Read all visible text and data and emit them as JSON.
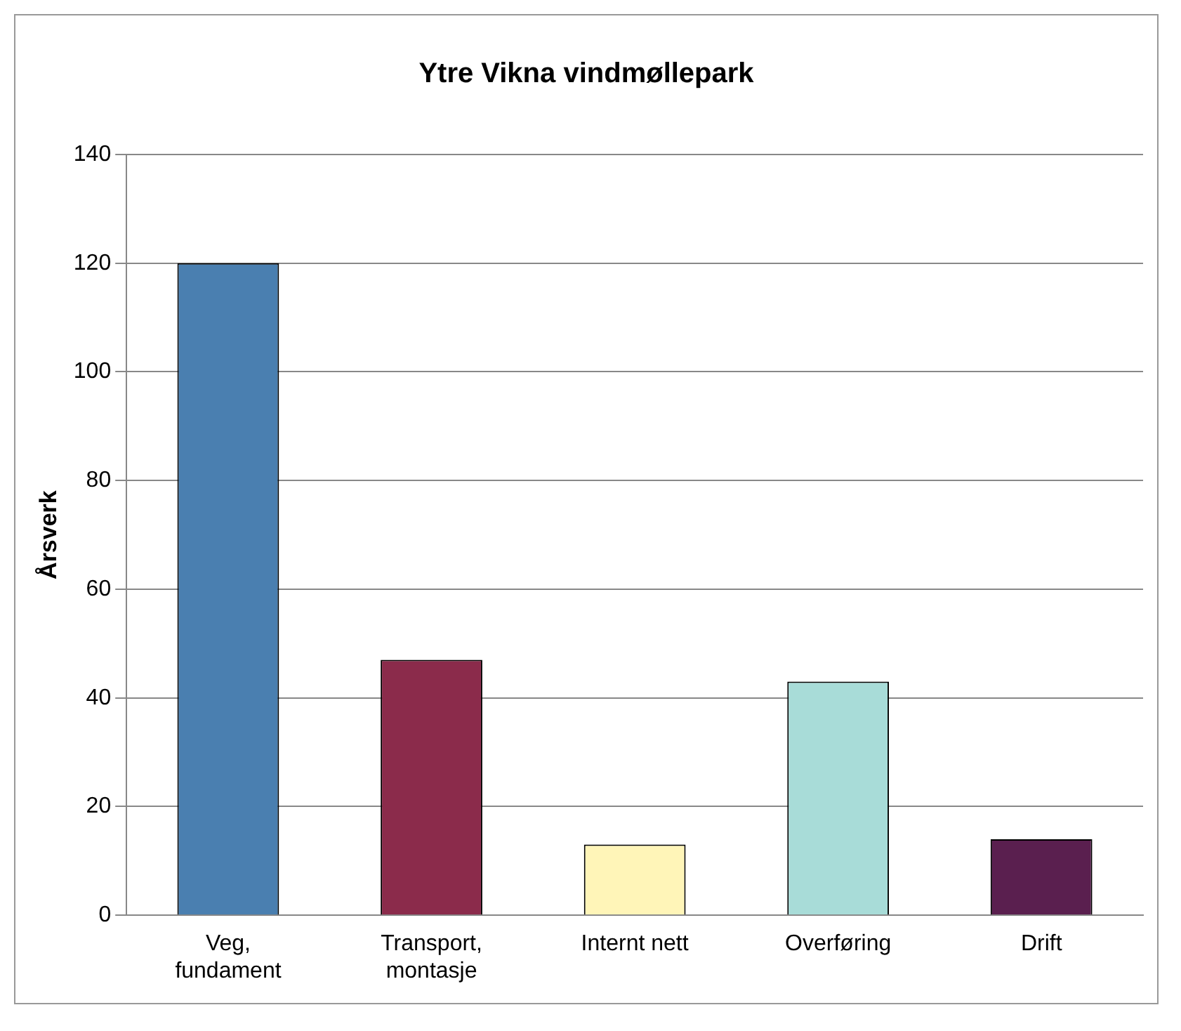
{
  "chart_data": {
    "type": "bar",
    "title": "Ytre Vikna vindmøllepark",
    "ylabel": "Årsverk",
    "categories": [
      "Veg, fundament",
      "Transport, montasje",
      "Internt nett",
      "Overføring",
      "Drift"
    ],
    "values": [
      120,
      47,
      13,
      43,
      14
    ],
    "colors": [
      "#4a7fb0",
      "#8b2b4b",
      "#fff5b8",
      "#a8dcd8",
      "#5a1f4f"
    ],
    "ylim": [
      0,
      140
    ],
    "yticks": [
      0,
      20,
      40,
      60,
      80,
      100,
      120,
      140
    ],
    "grid": "y"
  }
}
